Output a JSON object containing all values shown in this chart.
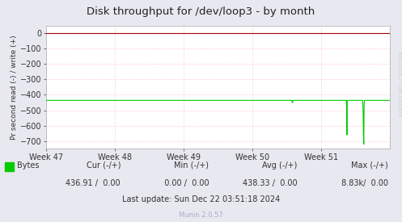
{
  "title": "Disk throughput for /dev/loop3 - by month",
  "ylabel": "Pr second read (-) / write (+)",
  "xlabel_ticks": [
    "Week 47",
    "Week 48",
    "Week 49",
    "Week 50",
    "Week 51"
  ],
  "ylim": [
    -750,
    50
  ],
  "yticks": [
    0,
    -100,
    -200,
    -300,
    -400,
    -500,
    -600,
    -700
  ],
  "bg_color": "#e8e8f0",
  "plot_bg_color": "#ffffff",
  "grid_color": "#ffaaaa",
  "line_color": "#00cc00",
  "border_color": "#aaaaaa",
  "title_color": "#222222",
  "legend_label": "Bytes",
  "cur_label": "Cur (-/+)",
  "min_label": "Min (-/+)",
  "avg_label": "Avg (-/+)",
  "max_label": "Max (-/+)",
  "cur_val": "436.91 /  0.00",
  "min_val": "  0.00 /  0.00",
  "avg_val": "438.33 /  0.00",
  "max_val": " 8.83k/  0.00",
  "last_update": "Last update: Sun Dec 22 03:51:18 2024",
  "munin_version": "Munin 2.0.57",
  "rrdtool_label": "RRDTOOL / TOBI OETIKER",
  "watermark_color": "#cccccc"
}
